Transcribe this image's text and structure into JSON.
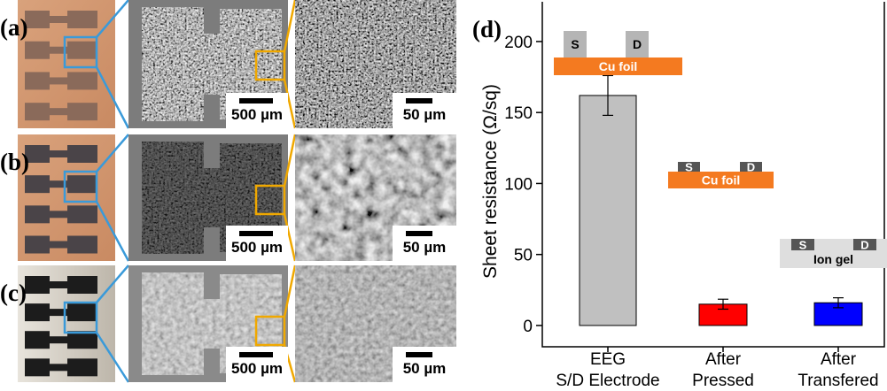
{
  "panels": [
    {
      "label": "(a)",
      "scale_bars": [
        "500 µm",
        "50 µm"
      ]
    },
    {
      "label": "(b)",
      "scale_bars": [
        "500 µm",
        "50 µm"
      ]
    },
    {
      "label": "(c)",
      "scale_bars": [
        "500 µm",
        "50 µm"
      ]
    }
  ],
  "chart_data": {
    "type": "bar",
    "panel_label": "(d)",
    "y_label": "Sheet resistance (Ω/sq)",
    "categories": [
      [
        "EEG",
        "S/D Electrode"
      ],
      [
        "After",
        "Pressed"
      ],
      [
        "After",
        "Transfered"
      ]
    ],
    "values": [
      162,
      15,
      16
    ],
    "errors": [
      14,
      3.5,
      3.5
    ],
    "colors": [
      "#c0c0c0",
      "#ff0000",
      "#0000ff"
    ],
    "ylim": [
      -15,
      228
    ],
    "yticks": [
      0,
      50,
      100,
      150,
      200
    ],
    "insets": [
      {
        "source": "S",
        "drain": "D",
        "substrate": "Cu foil"
      },
      {
        "source": "S",
        "drain": "D",
        "substrate": "Cu foil"
      },
      {
        "source": "S",
        "drain": "D",
        "substrate": "Ion gel"
      }
    ]
  }
}
